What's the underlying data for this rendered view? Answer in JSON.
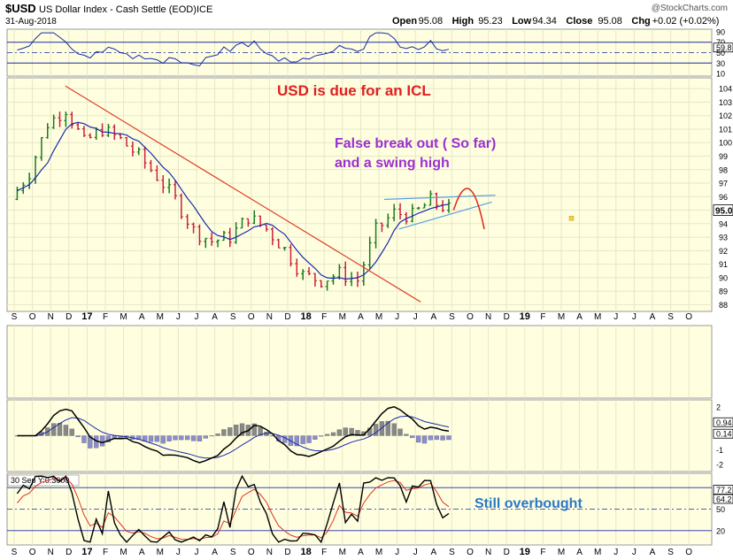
{
  "header": {
    "symbol": "$USD",
    "name": "US Dollar Index - Cash Settle (EOD)",
    "exchange": "ICE",
    "date": "31-Aug-2018",
    "watermark": "@StockCharts.com",
    "ohlc": [
      {
        "label": "Open",
        "value": "95.08"
      },
      {
        "label": "High",
        "value": "95.23"
      },
      {
        "label": "Low",
        "value": "94.34"
      },
      {
        "label": "Close",
        "value": "95.08"
      },
      {
        "label": "Chg",
        "value": "+0.02 (+0.02%)"
      }
    ]
  },
  "annotations": {
    "icl": "USD is due for an ICL",
    "breakout_line1": "False break out ( So far)",
    "breakout_line2": "and a swing high",
    "overbought": "Still overbought"
  },
  "colors": {
    "panel_bg": "#ffffe0",
    "grid": "#e6e6c8",
    "bar_up": "#1a7a1a",
    "bar_down": "#cc1f3a",
    "trendline": "#e0402a",
    "ma": "#1a2aa8",
    "wedge": "#5aa0e0",
    "arc": "#e03020",
    "icl_text": "#e02020",
    "breakout_text": "#9b30d0",
    "overbought_text": "#2a78c8",
    "histogram": "#8c8cd0",
    "histogram_pos": "#888888"
  },
  "chart_data": [
    {
      "panel": "rsi-top",
      "type": "line",
      "ticks": [
        90,
        70,
        59.8,
        50,
        30,
        10
      ],
      "current": "59.8",
      "ylim": [
        5,
        95
      ]
    },
    {
      "panel": "price",
      "type": "bar",
      "ticks": [
        "104",
        "103",
        "102",
        "101",
        "100",
        "99",
        "98",
        "97",
        "96",
        "95.0",
        "94",
        "93",
        "92",
        "91",
        "90",
        "89",
        "88"
      ],
      "current": "95.0",
      "ylim": [
        87.5,
        104.8
      ],
      "month_labels": [
        "S",
        "O",
        "N",
        "D",
        "17",
        "F",
        "M",
        "A",
        "M",
        "J",
        "J",
        "A",
        "S",
        "O",
        "N",
        "D",
        "18",
        "F",
        "M",
        "A",
        "M",
        "J",
        "J",
        "A",
        "S",
        "O",
        "N",
        "D",
        "19",
        "F",
        "M",
        "A",
        "M",
        "J",
        "J",
        "A",
        "S",
        "O"
      ],
      "bold_labels": [
        "17",
        "18",
        "19"
      ],
      "last_data_index": 24,
      "series_monthly_close": [
        95.8,
        97.8,
        101.4,
        102.5,
        100.0,
        101.0,
        100.2,
        99.0,
        97.5,
        95.8,
        93.5,
        92.7,
        93.0,
        94.5,
        93.6,
        92.1,
        90.2,
        89.8,
        90.3,
        89.8,
        93.5,
        94.8,
        94.6,
        95.7,
        95.08
      ]
    },
    {
      "panel": "blank",
      "type": "area",
      "ylim": [
        0,
        1
      ]
    },
    {
      "panel": "macd",
      "type": "line",
      "ticks": [
        "2",
        "0.94",
        "0.14",
        "-1",
        "-2"
      ],
      "values_highlight": [
        "0.94",
        "0.14"
      ],
      "ylim": [
        -2.5,
        2.5
      ]
    },
    {
      "panel": "stochastic",
      "type": "line",
      "label": "30 Sep Y:0.3000",
      "ticks": [
        "80",
        "77.2",
        "64.2",
        "50",
        "20"
      ],
      "values_highlight": [
        "77.2",
        "64.2"
      ],
      "ylim": [
        0,
        100
      ]
    }
  ]
}
